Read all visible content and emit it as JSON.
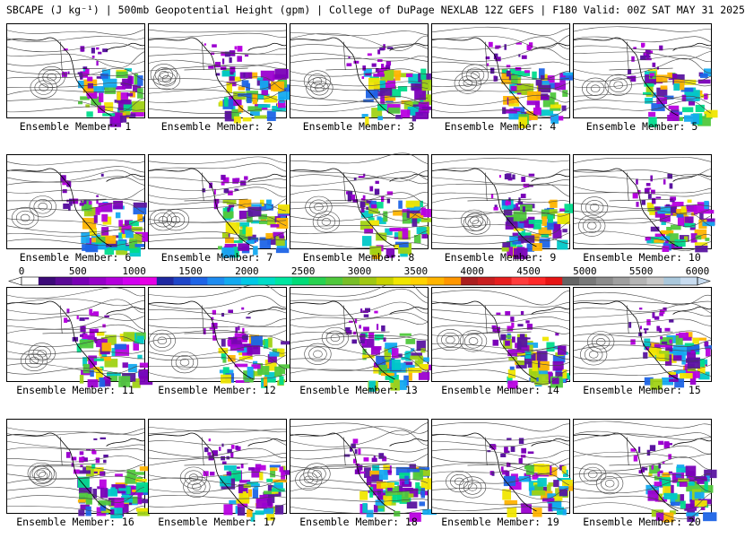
{
  "header": {
    "title": "SBCAPE (J kg⁻¹) | 500mb Geopotential Height (gpm) | College of DuPage NEXLAB 12Z GEFS | F180 Valid: 00Z SAT MAY 31 2025"
  },
  "panels": [
    {
      "label": "Ensemble Member: 1"
    },
    {
      "label": "Ensemble Member: 2"
    },
    {
      "label": "Ensemble Member: 3"
    },
    {
      "label": "Ensemble Member: 4"
    },
    {
      "label": "Ensemble Member: 5"
    },
    {
      "label": "Ensemble Member: 6"
    },
    {
      "label": "Ensemble Member: 7"
    },
    {
      "label": "Ensemble Member: 8"
    },
    {
      "label": "Ensemble Member: 9"
    },
    {
      "label": "Ensemble Member: 10"
    },
    {
      "label": "Ensemble Member: 11"
    },
    {
      "label": "Ensemble Member: 12"
    },
    {
      "label": "Ensemble Member: 13"
    },
    {
      "label": "Ensemble Member: 14"
    },
    {
      "label": "Ensemble Member: 15"
    },
    {
      "label": "Ensemble Member: 16"
    },
    {
      "label": "Ensemble Member: 17"
    },
    {
      "label": "Ensemble Member: 18"
    },
    {
      "label": "Ensemble Member: 19"
    },
    {
      "label": "Ensemble Member: 20"
    }
  ],
  "colorbar": {
    "labels": [
      "0",
      "500",
      "1000",
      "1500",
      "2000",
      "2500",
      "3000",
      "3500",
      "4000",
      "4500",
      "5000",
      "5500",
      "6000"
    ],
    "min": 0,
    "max": 6000,
    "colors": [
      "#ffffff",
      "#3c0a78",
      "#5a0a96",
      "#7800b4",
      "#9600c8",
      "#b400dc",
      "#d200f0",
      "#e600e6",
      "#1e28a0",
      "#1e46c8",
      "#1e64e6",
      "#1e8cf0",
      "#14aaf0",
      "#00c8e6",
      "#00dcc8",
      "#00e6a0",
      "#00dc78",
      "#28d250",
      "#50c83c",
      "#78be28",
      "#a0c814",
      "#c8d200",
      "#f0e600",
      "#ffd200",
      "#ffb400",
      "#ff9600",
      "#aa1e1e",
      "#c81e1e",
      "#e61e1e",
      "#ff3c3c",
      "#ff2828",
      "#e61414",
      "#646464",
      "#787878",
      "#8c8c8c",
      "#a0a0a0",
      "#b4b4b4",
      "#c8c8c8",
      "#aac8dc",
      "#c8dcf0"
    ]
  }
}
